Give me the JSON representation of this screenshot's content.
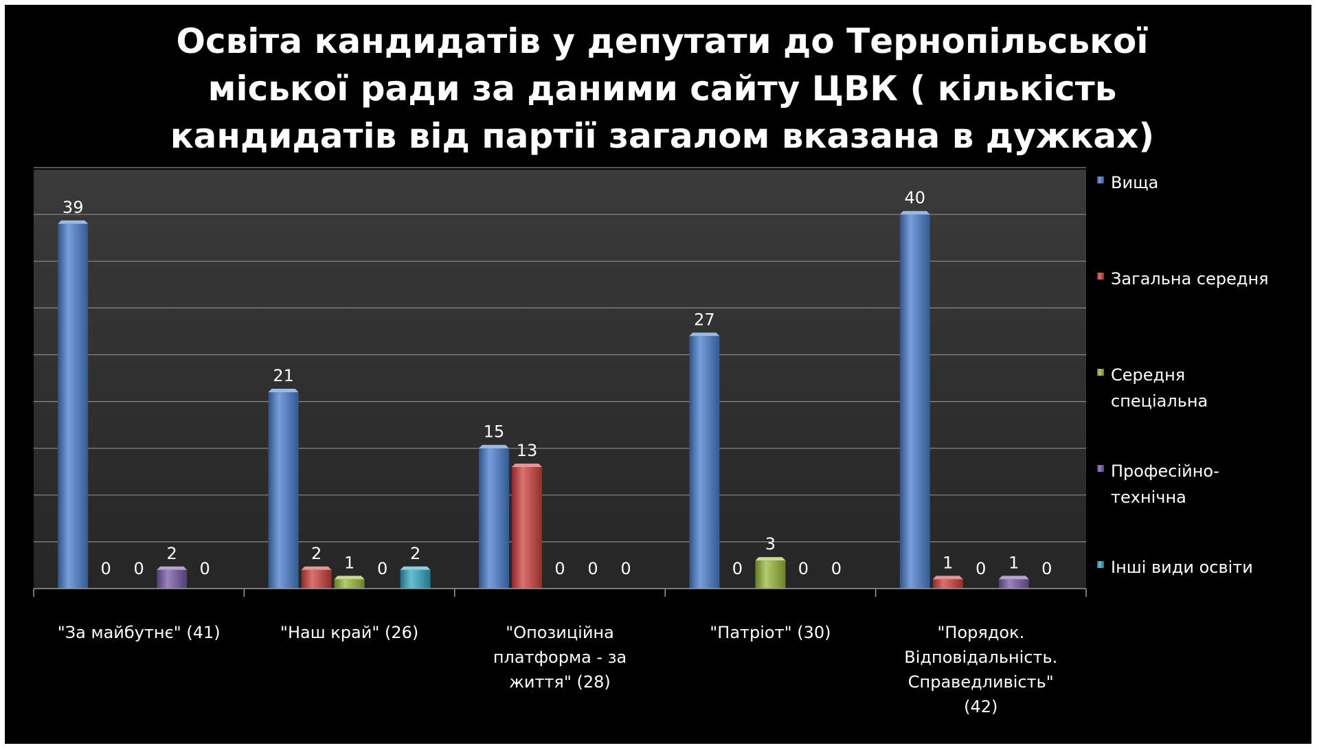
{
  "chart_data": {
    "type": "bar",
    "title": "Освіта кандидатів у депутати до Тернопільської міської ради за даними сайту ЦВК ( кількість кандидатів від партії загалом вказана в дужках)",
    "title_lines": [
      "Освіта кандидатів у депутати до Тернопільської",
      "міської ради за даними сайту ЦВК ( кількість",
      "кандидатів від партії загалом вказана в дужках)"
    ],
    "categories": [
      "\"За майбутнє\" (41)",
      "\"Наш край\" (26)",
      "\"Опозиційна платформа - за життя\" (28)",
      "\"Патріот\" (30)",
      "\"Порядок. Відповідальність. Справедливість\" (42)"
    ],
    "category_lines": [
      [
        "\"За майбутнє\" (41)"
      ],
      [
        "\"Наш край\" (26)"
      ],
      [
        "\"Опозиційна",
        "платформа - за",
        "життя\" (28)"
      ],
      [
        "\"Патріот\" (30)"
      ],
      [
        "\"Порядок.",
        "Відповідальність.",
        "Справедливість\"",
        "(42)"
      ]
    ],
    "series": [
      {
        "name": "Вища",
        "name_lines": [
          "Вища"
        ],
        "color": "#4a7fd0",
        "values": [
          39,
          21,
          15,
          27,
          40
        ]
      },
      {
        "name": "Загальна середня",
        "name_lines": [
          "Загальна середня"
        ],
        "color": "#d0413d",
        "values": [
          0,
          2,
          13,
          0,
          1
        ]
      },
      {
        "name": "Середня спеціальна",
        "name_lines": [
          "Середня",
          "спеціальна"
        ],
        "color": "#9bbb3a",
        "values": [
          0,
          1,
          0,
          3,
          0
        ]
      },
      {
        "name": "Професійно-технічна",
        "name_lines": [
          "Професійно-",
          "технічна"
        ],
        "color": "#7a5aa8",
        "values": [
          2,
          0,
          0,
          0,
          1
        ]
      },
      {
        "name": "Інші види освіти",
        "name_lines": [
          "Інші види освіти"
        ],
        "color": "#33a9c4",
        "values": [
          0,
          2,
          0,
          0,
          0
        ]
      }
    ],
    "ylim": [
      0,
      45
    ],
    "grid": true,
    "legend": "right",
    "data_labels": true,
    "xlabel": "",
    "ylabel": ""
  }
}
